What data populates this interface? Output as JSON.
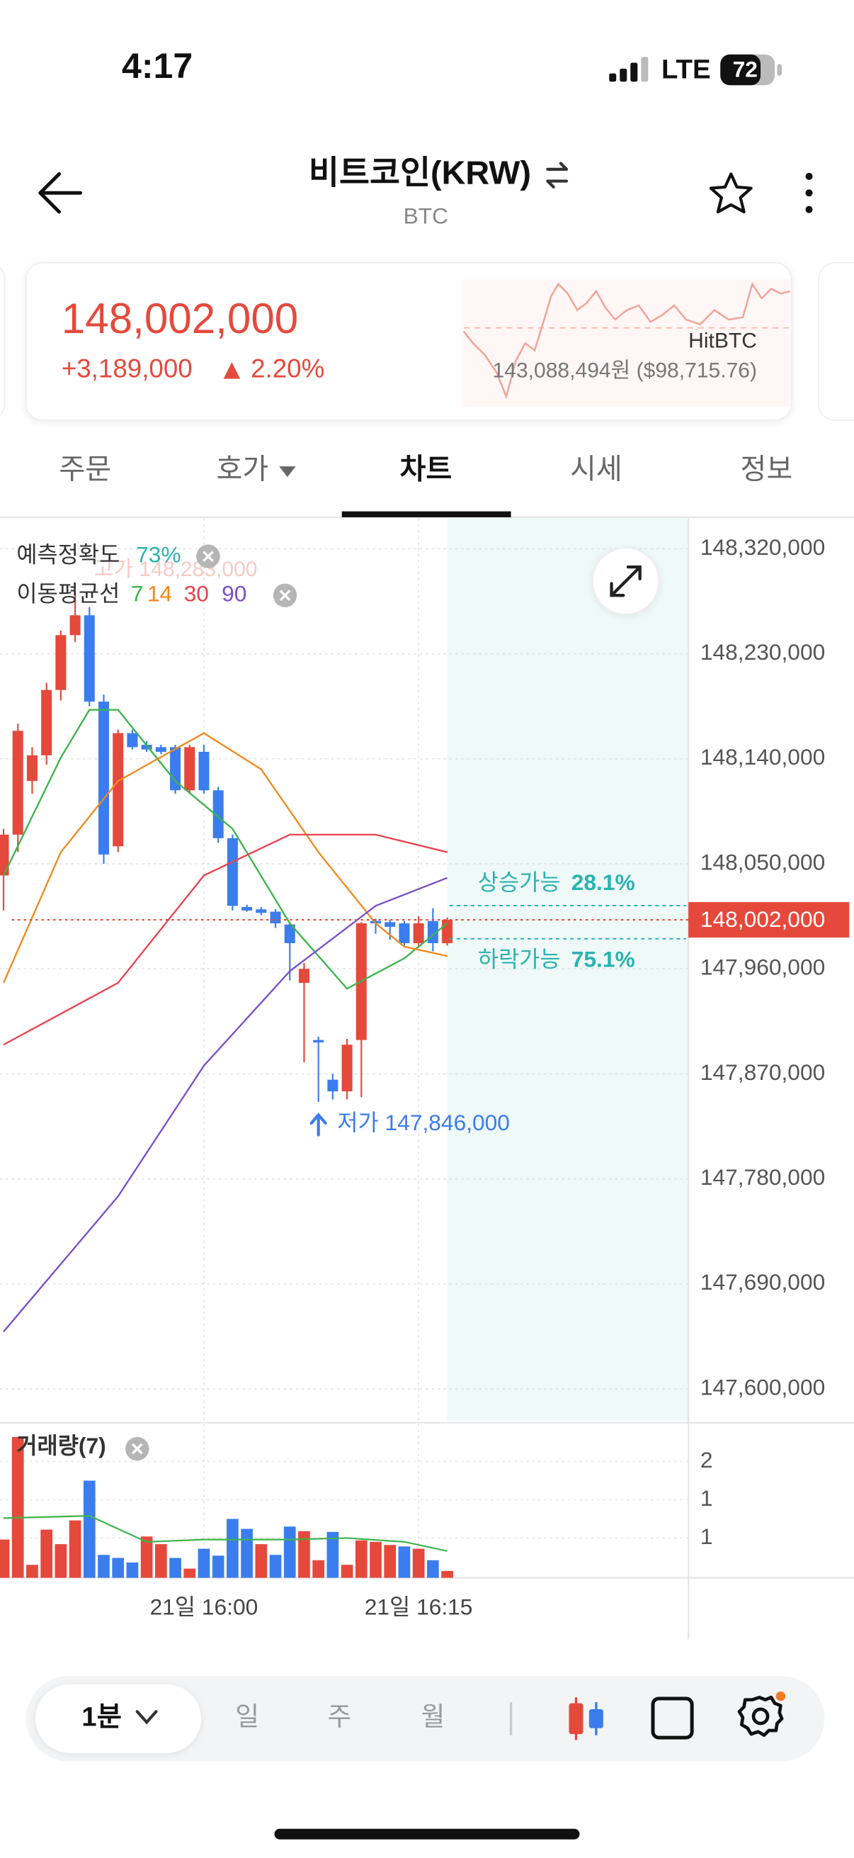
{
  "status": {
    "time": "4:17",
    "network": "LTE",
    "battery": "72"
  },
  "header": {
    "title": "비트코인(KRW)",
    "subtitle": "BTC"
  },
  "price_card": {
    "price": "148,002,000",
    "change": "+3,189,000",
    "change_pct": "2.20%",
    "exchange": "HitBTC",
    "reference": "143,088,494원 ($98,715.76)"
  },
  "tabs": [
    "주문",
    "호가",
    "차트",
    "시세",
    "정보"
  ],
  "bottom_bar": {
    "interval": "1분",
    "periods": [
      "일",
      "주",
      "월"
    ]
  },
  "chart_data": [
    {
      "type": "candlestick",
      "accuracy_label": "예측정확도",
      "accuracy": "73%",
      "ma_label": "이동평균선",
      "high_label": "고가 148,283,000",
      "low_label": "저가 147,846,000",
      "up_label": "상승가능",
      "up_pct": "28.1%",
      "down_label": "하락가능",
      "down_pct": "75.1%",
      "current_value": 148002000,
      "current_label": "148,002,000",
      "up_color": "#e5493c",
      "down_color": "#3b7ded",
      "categories": [
        null,
        null,
        null,
        null,
        null,
        null,
        null,
        null,
        null,
        null,
        null,
        null,
        null,
        null,
        "21일 16:00",
        null,
        null,
        null,
        null,
        null,
        null,
        null,
        null,
        null,
        null,
        null,
        null,
        null,
        null,
        "21일 16:15",
        null,
        null
      ],
      "open": [
        148040000,
        148075000,
        148121000,
        148143000,
        148199000,
        148246000,
        148263000,
        148189000,
        148065000,
        148162000,
        148152000,
        148150000,
        148150000,
        148113000,
        148146000,
        148113000,
        148072000,
        148013000,
        148011000,
        148009000,
        147998000,
        147948000,
        147899000,
        147865000,
        147855000,
        147899000,
        148001000,
        148000000,
        147999000,
        147982000,
        148001000,
        147982000
      ],
      "high": [
        148080000,
        148170000,
        148150000,
        148205000,
        148250000,
        148283000,
        148270000,
        148195000,
        148165000,
        148165000,
        148155000,
        148152000,
        148152000,
        148152000,
        148152000,
        148116000,
        148075000,
        148015000,
        148013000,
        148011000,
        148000000,
        147965000,
        147902000,
        147870000,
        147900000,
        148000000,
        148003000,
        148002000,
        148001000,
        148005000,
        148012000,
        148004000
      ],
      "low": [
        148010000,
        148060000,
        148110000,
        148135000,
        148190000,
        148240000,
        148185000,
        148050000,
        148060000,
        148148000,
        148146000,
        148144000,
        148110000,
        148110000,
        148110000,
        148068000,
        148010000,
        148009000,
        148006000,
        147995000,
        147950000,
        147880000,
        147846000,
        147848000,
        147848000,
        147850000,
        147990000,
        147985000,
        147980000,
        147978000,
        147975000,
        147980000
      ],
      "close": [
        148075000,
        148164000,
        148143000,
        148199000,
        148246000,
        148263000,
        148189000,
        148058000,
        148162000,
        148150000,
        148148000,
        148146000,
        148113000,
        148150000,
        148113000,
        148072000,
        148014000,
        148010000,
        148008000,
        147999000,
        147982000,
        147960000,
        147897000,
        147855000,
        147895000,
        147999000,
        147999000,
        147996000,
        147982000,
        147999000,
        147982000,
        148002000
      ],
      "series": [
        {
          "name": "7",
          "color": "#3cb44b",
          "x": [
            0,
            4,
            6,
            8,
            12,
            16,
            20,
            24,
            28,
            31
          ],
          "values": [
            148040000,
            148141000,
            148182000,
            148182000,
            148121000,
            148080000,
            147999000,
            147943000,
            147969000,
            147999000
          ]
        },
        {
          "name": "14",
          "color": "#f08a1c",
          "x": [
            0,
            4,
            8,
            14,
            18,
            22,
            26,
            28,
            31
          ],
          "values": [
            147948000,
            148060000,
            148121000,
            148162000,
            148131000,
            148060000,
            147999000,
            147979000,
            147971000
          ]
        },
        {
          "name": "30",
          "color": "#e8434f",
          "x": [
            0,
            8,
            14,
            20,
            26,
            31
          ],
          "values": [
            147895000,
            147948000,
            148040000,
            148075000,
            148075000,
            148060000
          ]
        },
        {
          "name": "90",
          "color": "#7a4fc9",
          "x": [
            0,
            8,
            14,
            20,
            26,
            31
          ],
          "values": [
            147649000,
            147765000,
            147877000,
            147958000,
            148014000,
            148038000
          ]
        }
      ],
      "ylim": [
        147573000,
        148346000
      ],
      "yticks": [
        {
          "value": 148320000,
          "label": "148,320,000"
        },
        {
          "value": 148230000,
          "label": "148,230,000"
        },
        {
          "value": 148140000,
          "label": "148,140,000"
        },
        {
          "value": 148050000,
          "label": "148,050,000"
        },
        {
          "value": 147960000,
          "label": "147,960,000"
        },
        {
          "value": 147870000,
          "label": "147,870,000"
        },
        {
          "value": 147780000,
          "label": "147,780,000"
        },
        {
          "value": 147690000,
          "label": "147,690,000"
        },
        {
          "value": 147600000,
          "label": "147,600,000"
        }
      ],
      "grid": true
    },
    {
      "type": "bar",
      "title": "거래량(7)",
      "values": [
        0.98,
        2.32,
        0.65,
        1.11,
        0.92,
        1.23,
        1.75,
        0.78,
        0.74,
        0.68,
        1.02,
        0.92,
        0.74,
        0.6,
        0.86,
        0.77,
        1.25,
        1.12,
        0.92,
        0.78,
        1.15,
        1.09,
        0.71,
        1.08,
        0.65,
        0.97,
        0.95,
        0.91,
        0.89,
        0.86,
        0.71,
        0.57
      ],
      "colors": [
        "#e5493c",
        "#e5493c",
        "#e5493c",
        "#e5493c",
        "#e5493c",
        "#e5493c",
        "#3b7ded",
        "#3b7ded",
        "#3b7ded",
        "#3b7ded",
        "#e5493c",
        "#e5493c",
        "#3b7ded",
        "#e5493c",
        "#3b7ded",
        "#3b7ded",
        "#3b7ded",
        "#3b7ded",
        "#e5493c",
        "#3b7ded",
        "#3b7ded",
        "#e5493c",
        "#e5493c",
        "#3b7ded",
        "#e5493c",
        "#e5493c",
        "#e5493c",
        "#e5493c",
        "#3b7ded",
        "#e5493c",
        "#3b7ded",
        "#e5493c"
      ],
      "ma": {
        "color": "#3cb44b",
        "x": [
          0,
          6,
          10,
          14,
          20,
          24,
          28,
          31
        ],
        "values": [
          1.26,
          1.29,
          0.95,
          0.98,
          0.98,
          1.0,
          0.95,
          0.83
        ]
      },
      "ylim": [
        0.48,
        2.46
      ],
      "yticks": [
        2,
        {
          "value": 1.5,
          "label": "1"
        },
        1
      ],
      "grid": true
    }
  ]
}
